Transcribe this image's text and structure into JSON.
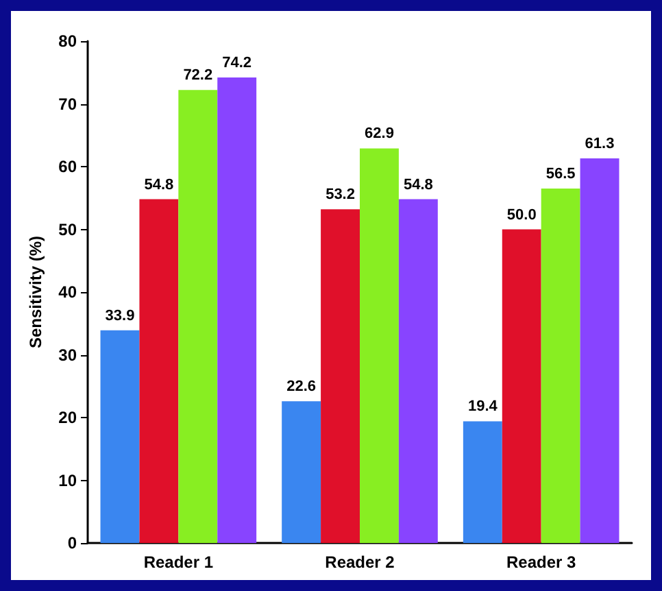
{
  "chart_data": {
    "type": "bar",
    "ylabel": "Sensitivity (%)",
    "categories": [
      "Reader 1",
      "Reader 2",
      "Reader 3"
    ],
    "series": [
      {
        "color": "#3a86f0",
        "values": [
          33.9,
          22.6,
          19.4
        ],
        "value_labels": [
          "33.9",
          "22.6",
          "19.4"
        ]
      },
      {
        "color": "#e0102a",
        "values": [
          54.8,
          53.2,
          50.0
        ],
        "value_labels": [
          "54.8",
          "53.2",
          "50.0"
        ]
      },
      {
        "color": "#88ee22",
        "values": [
          72.2,
          62.9,
          56.5
        ],
        "value_labels": [
          "72.2",
          "62.9",
          "56.5"
        ]
      },
      {
        "color": "#8844ff",
        "values": [
          74.2,
          54.8,
          61.3
        ],
        "value_labels": [
          "74.2",
          "54.8",
          "61.3"
        ]
      }
    ],
    "ylim": [
      0,
      80
    ],
    "yticks": [
      0,
      10,
      20,
      30,
      40,
      50,
      60,
      70,
      80
    ],
    "grid": false
  }
}
